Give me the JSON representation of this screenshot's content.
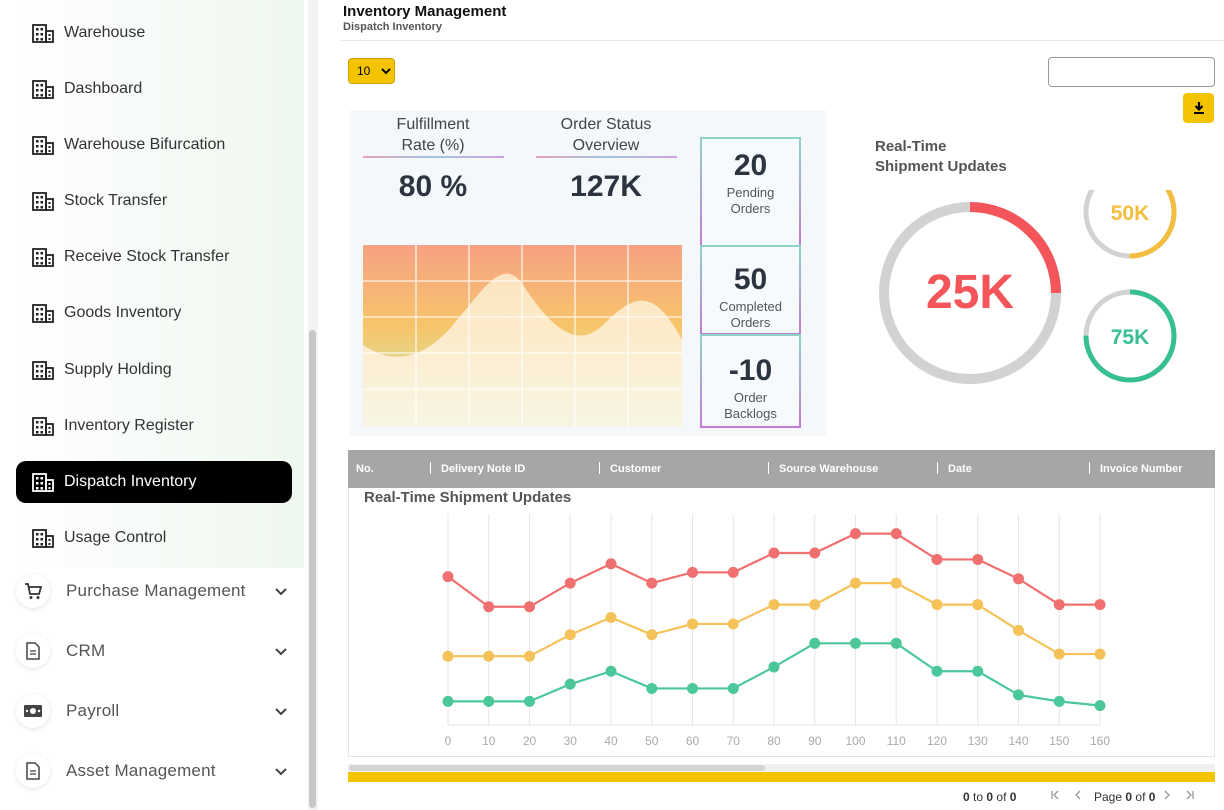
{
  "sidebar": {
    "sub_items": [
      {
        "label": "Warehouse"
      },
      {
        "label": "Dashboard"
      },
      {
        "label": "Warehouse Bifurcation"
      },
      {
        "label": "Stock Transfer"
      },
      {
        "label": "Receive Stock Transfer"
      },
      {
        "label": "Goods Inventory"
      },
      {
        "label": "Supply Holding"
      },
      {
        "label": "Inventory Register"
      },
      {
        "label": "Dispatch Inventory",
        "active": true
      },
      {
        "label": "Usage Control"
      }
    ],
    "main_items": [
      {
        "label": "Purchase Management",
        "icon": "cart-icon"
      },
      {
        "label": "CRM",
        "icon": "document-icon"
      },
      {
        "label": "Payroll",
        "icon": "money-icon"
      },
      {
        "label": "Asset Management",
        "icon": "document-icon"
      }
    ]
  },
  "header": {
    "title": "Inventory Management",
    "subtitle": "Dispatch Inventory"
  },
  "controls": {
    "page_size": "10",
    "page_size_options": [
      "10"
    ],
    "search_value": "",
    "download_icon": "download-icon",
    "accent_color": "#f5c400"
  },
  "kpis": {
    "fulfillment_label_1": "Fulfillment",
    "fulfillment_label_2": "Rate (%)",
    "fulfillment_value": "80 %",
    "order_status_label_1": "Order Status",
    "order_status_label_2": "Overview",
    "order_status_value": "127K",
    "stats": [
      {
        "value": "20",
        "label_1": "Pending",
        "label_2": "Orders"
      },
      {
        "value": "50",
        "label_1": "Completed",
        "label_2": "Orders"
      },
      {
        "value": "-10",
        "label_1": "Order",
        "label_2": "Backlogs"
      }
    ]
  },
  "realtime": {
    "title_1": "Real-Time",
    "title_2": "Shipment Updates",
    "rings": [
      {
        "value": "25K",
        "fraction": 0.25,
        "color": "#f4555a"
      },
      {
        "value": "50K",
        "fraction": 0.5,
        "color": "#f4bd40"
      },
      {
        "value": "75K",
        "fraction": 0.75,
        "color": "#37bf93"
      }
    ]
  },
  "table": {
    "columns": [
      "No.",
      "Delivery Note ID",
      "Customer",
      "Source Warehouse",
      "Date",
      "Invoice Number"
    ]
  },
  "chart_data": {
    "type": "line",
    "title": "Real-Time Shipment Updates",
    "x": [
      0,
      10,
      20,
      30,
      40,
      50,
      60,
      70,
      80,
      90,
      100,
      110,
      120,
      130,
      140,
      150,
      160
    ],
    "ylim": [
      0,
      100
    ],
    "grid": "vertical",
    "series": [
      {
        "color": "#f07070",
        "values": [
          69,
          55,
          55,
          66,
          75,
          66,
          71,
          71,
          80,
          80,
          89,
          89,
          77,
          77,
          68,
          56,
          56
        ]
      },
      {
        "color": "#f5c25a",
        "values": [
          32,
          32,
          32,
          42,
          50,
          42,
          47,
          47,
          56,
          56,
          66,
          66,
          56,
          56,
          44,
          33,
          33
        ]
      },
      {
        "color": "#4cc79a",
        "values": [
          11,
          11,
          11,
          19,
          25,
          17,
          17,
          17,
          27,
          38,
          38,
          38,
          25,
          25,
          14,
          11,
          9
        ]
      }
    ]
  },
  "pagination": {
    "from": "0",
    "to_word": "to",
    "to": "0",
    "of_word": "of",
    "total": "0",
    "page_word": "Page",
    "page": "0",
    "pages": "0"
  }
}
